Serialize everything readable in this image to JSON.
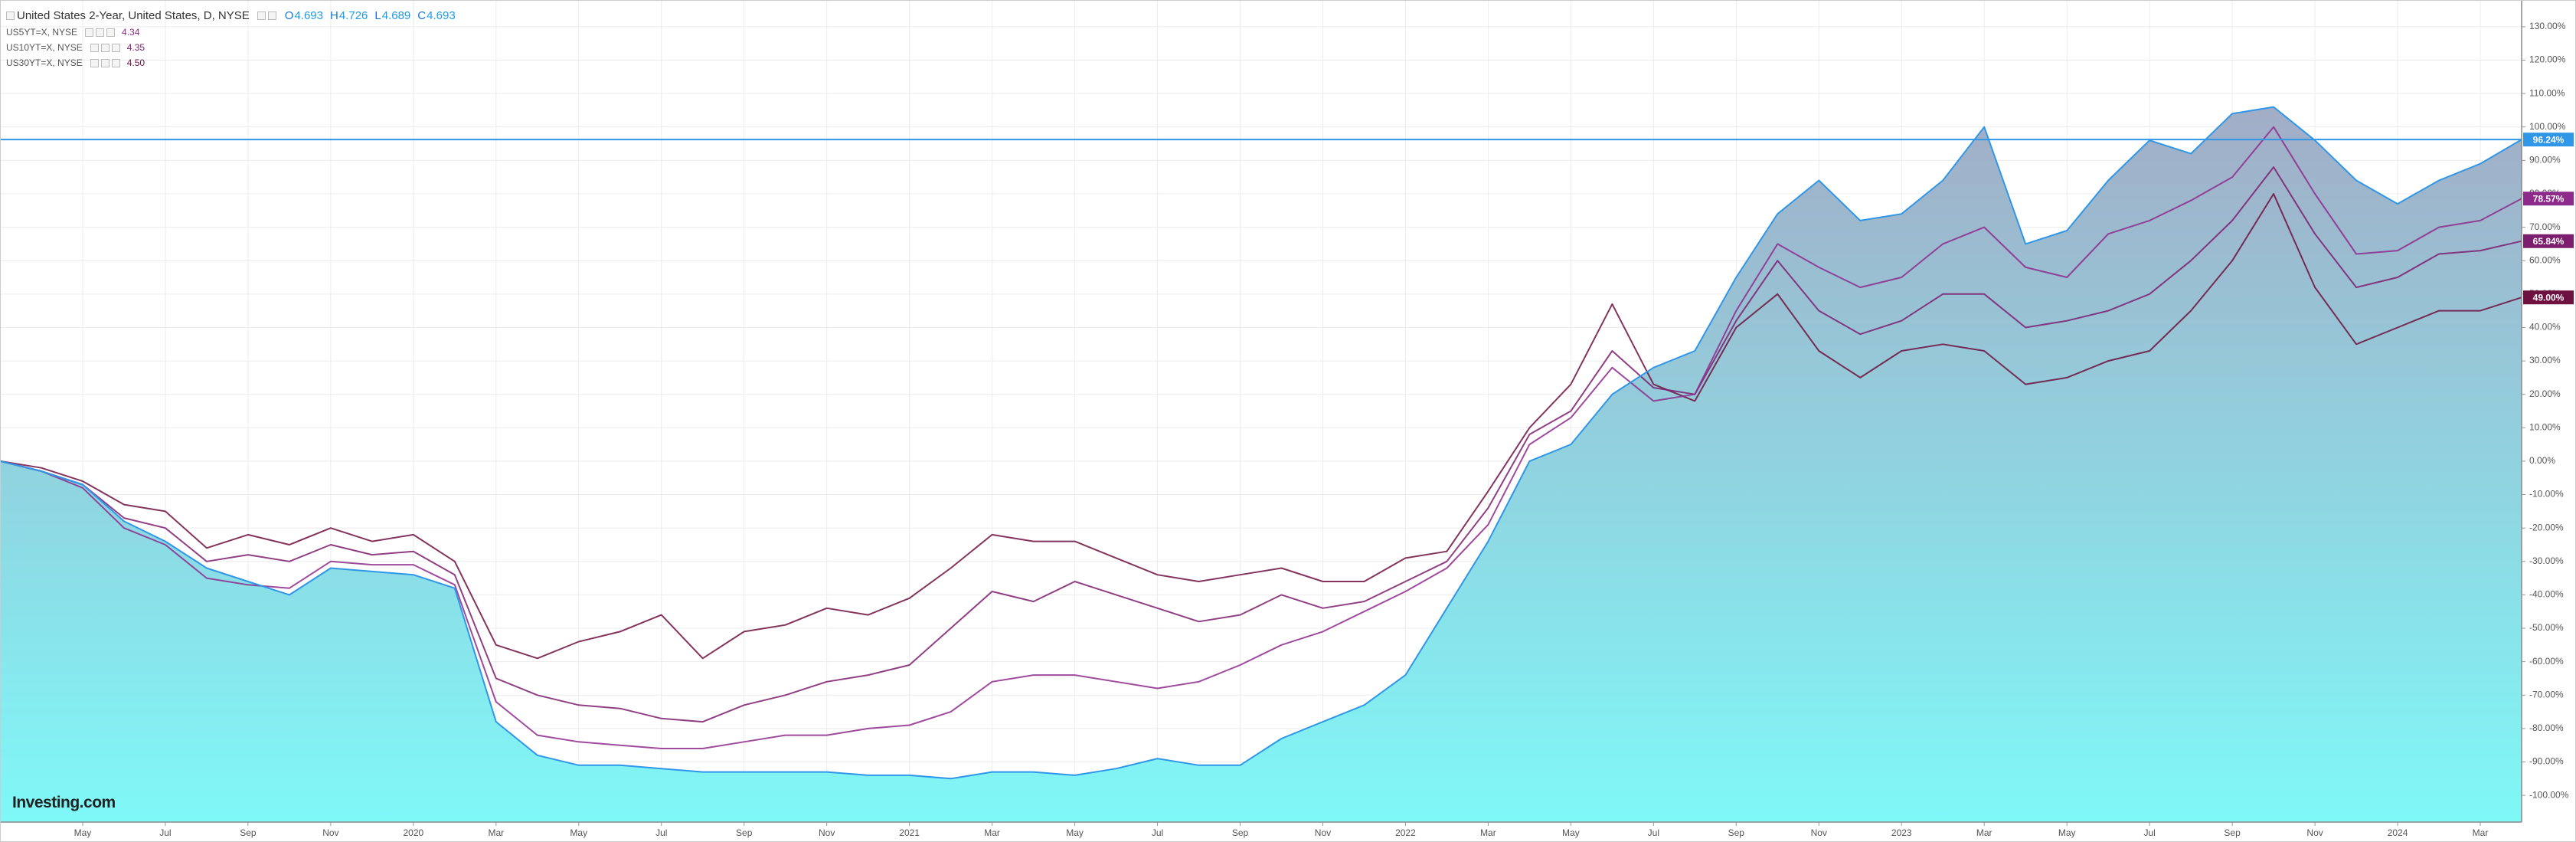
{
  "chart_data": {
    "type": "line",
    "title": "United States 2-Year, United States, D, NYSE",
    "ohlc": [
      {
        "label": "O",
        "value": 4.693
      },
      {
        "label": "H",
        "value": 4.726
      },
      {
        "label": "L",
        "value": 4.689
      },
      {
        "label": "C",
        "value": 4.693
      }
    ],
    "x": [
      "2019-03",
      "2019-04",
      "2019-05",
      "2019-06",
      "2019-07",
      "2019-08",
      "2019-09",
      "2019-10",
      "2019-11",
      "2019-12",
      "2020-01",
      "2020-02",
      "2020-03",
      "2020-04",
      "2020-05",
      "2020-06",
      "2020-07",
      "2020-08",
      "2020-09",
      "2020-10",
      "2020-11",
      "2020-12",
      "2021-01",
      "2021-02",
      "2021-03",
      "2021-04",
      "2021-05",
      "2021-06",
      "2021-07",
      "2021-08",
      "2021-09",
      "2021-10",
      "2021-11",
      "2021-12",
      "2022-01",
      "2022-02",
      "2022-03",
      "2022-04",
      "2022-05",
      "2022-06",
      "2022-07",
      "2022-08",
      "2022-09",
      "2022-10",
      "2022-11",
      "2022-12",
      "2023-01",
      "2023-02",
      "2023-03",
      "2023-04",
      "2023-05",
      "2023-06",
      "2023-07",
      "2023-08",
      "2023-09",
      "2023-10",
      "2023-11",
      "2023-12",
      "2024-01",
      "2024-02",
      "2024-03",
      "2024-04"
    ],
    "xlim": [
      "2019-03",
      "2024-04"
    ],
    "xticks": [
      {
        "value": "2019-05",
        "label": "May"
      },
      {
        "value": "2019-07",
        "label": "Jul"
      },
      {
        "value": "2019-09",
        "label": "Sep"
      },
      {
        "value": "2019-11",
        "label": "Nov"
      },
      {
        "value": "2020-01",
        "label": "2020"
      },
      {
        "value": "2020-03",
        "label": "Mar"
      },
      {
        "value": "2020-05",
        "label": "May"
      },
      {
        "value": "2020-07",
        "label": "Jul"
      },
      {
        "value": "2020-09",
        "label": "Sep"
      },
      {
        "value": "2020-11",
        "label": "Nov"
      },
      {
        "value": "2021-01",
        "label": "2021"
      },
      {
        "value": "2021-03",
        "label": "Mar"
      },
      {
        "value": "2021-05",
        "label": "May"
      },
      {
        "value": "2021-07",
        "label": "Jul"
      },
      {
        "value": "2021-09",
        "label": "Sep"
      },
      {
        "value": "2021-11",
        "label": "Nov"
      },
      {
        "value": "2022-01",
        "label": "2022"
      },
      {
        "value": "2022-03",
        "label": "Mar"
      },
      {
        "value": "2022-05",
        "label": "May"
      },
      {
        "value": "2022-07",
        "label": "Jul"
      },
      {
        "value": "2022-09",
        "label": "Sep"
      },
      {
        "value": "2022-11",
        "label": "Nov"
      },
      {
        "value": "2023-01",
        "label": "2023"
      },
      {
        "value": "2023-03",
        "label": "Mar"
      },
      {
        "value": "2023-05",
        "label": "May"
      },
      {
        "value": "2023-07",
        "label": "Jul"
      },
      {
        "value": "2023-09",
        "label": "Sep"
      },
      {
        "value": "2023-11",
        "label": "Nov"
      },
      {
        "value": "2024-01",
        "label": "2024"
      },
      {
        "value": "2024-03",
        "label": "Mar"
      }
    ],
    "ylim": [
      -108,
      138
    ],
    "yticks": [
      {
        "value": 130,
        "label": "130.00%"
      },
      {
        "value": 120,
        "label": "120.00%"
      },
      {
        "value": 110,
        "label": "110.00%"
      },
      {
        "value": 100,
        "label": "100.00%"
      },
      {
        "value": 90,
        "label": "90.00%"
      },
      {
        "value": 80,
        "label": "80.00%"
      },
      {
        "value": 70,
        "label": "70.00%"
      },
      {
        "value": 60,
        "label": "60.00%"
      },
      {
        "value": 50,
        "label": "50.00%"
      },
      {
        "value": 40,
        "label": "40.00%"
      },
      {
        "value": 30,
        "label": "30.00%"
      },
      {
        "value": 20,
        "label": "20.00%"
      },
      {
        "value": 10,
        "label": "10.00%"
      },
      {
        "value": 0,
        "label": "0.00%"
      },
      {
        "value": -10,
        "label": "-10.00%"
      },
      {
        "value": -20,
        "label": "-20.00%"
      },
      {
        "value": -30,
        "label": "-30.00%"
      },
      {
        "value": -40,
        "label": "-40.00%"
      },
      {
        "value": -50,
        "label": "-50.00%"
      },
      {
        "value": -60,
        "label": "-60.00%"
      },
      {
        "value": -70,
        "label": "-70.00%"
      },
      {
        "value": -80,
        "label": "-80.00%"
      },
      {
        "value": -90,
        "label": "-90.00%"
      },
      {
        "value": -100,
        "label": "-100.00%"
      }
    ],
    "grid": true,
    "series": [
      {
        "color": "#2f96e8",
        "fill": [
          "#a2adc6",
          "#7ff8f8"
        ],
        "price_line": true,
        "end_label": "96.24%",
        "values": [
          0,
          -3,
          -7,
          -18,
          -24,
          -32,
          -36,
          -40,
          -32,
          -33,
          -34,
          -38,
          -78,
          -88,
          -91,
          -91,
          -92,
          -93,
          -93,
          -93,
          -93,
          -94,
          -94,
          -95,
          -93,
          -93,
          -94,
          -92,
          -89,
          -91,
          -91,
          -83,
          -78,
          -73,
          -64,
          -44,
          -24,
          0,
          5,
          20,
          28,
          33,
          55,
          74,
          84,
          72,
          74,
          84,
          100,
          65,
          69,
          84,
          96,
          92,
          104,
          106,
          96,
          84,
          77,
          84,
          89,
          96.24
        ]
      },
      {
        "name": "US5YT=X, NYSE",
        "price": "4.34",
        "color": "#8e2a8c",
        "end_label": "78.57%",
        "values": [
          0,
          -3,
          -8,
          -20,
          -25,
          -35,
          -37,
          -38,
          -30,
          -31,
          -31,
          -37,
          -72,
          -82,
          -84,
          -85,
          -86,
          -86,
          -84,
          -82,
          -82,
          -80,
          -79,
          -75,
          -66,
          -64,
          -64,
          -66,
          -68,
          -66,
          -61,
          -55,
          -51,
          -45,
          -39,
          -32,
          -19,
          5,
          13,
          28,
          18,
          20,
          45,
          65,
          58,
          52,
          55,
          65,
          70,
          58,
          55,
          68,
          72,
          78,
          85,
          100,
          80,
          62,
          63,
          70,
          72,
          78.57
        ]
      },
      {
        "name": "US10YT=X, NYSE",
        "price": "4.35",
        "color": "#7c1d6e",
        "end_label": "65.84%",
        "values": [
          0,
          -3,
          -7,
          -17,
          -20,
          -30,
          -28,
          -30,
          -25,
          -28,
          -27,
          -34,
          -65,
          -70,
          -73,
          -74,
          -77,
          -78,
          -73,
          -70,
          -66,
          -64,
          -61,
          -50,
          -39,
          -42,
          -36,
          -40,
          -44,
          -48,
          -46,
          -40,
          -44,
          -42,
          -36,
          -30,
          -14,
          8,
          15,
          33,
          22,
          20,
          42,
          60,
          45,
          38,
          42,
          50,
          50,
          40,
          42,
          45,
          50,
          60,
          72,
          88,
          68,
          52,
          55,
          62,
          63,
          65.84
        ]
      },
      {
        "name": "US30YT=X, NYSE",
        "price": "4.50",
        "color": "#6e1040",
        "end_label": "49.00%",
        "values": [
          0,
          -2,
          -6,
          -13,
          -15,
          -26,
          -22,
          -25,
          -20,
          -24,
          -22,
          -30,
          -55,
          -59,
          -54,
          -51,
          -46,
          -59,
          -51,
          -49,
          -44,
          -46,
          -41,
          -32,
          -22,
          -24,
          -24,
          -29,
          -34,
          -36,
          -34,
          -32,
          -36,
          -36,
          -29,
          -27,
          -9,
          10,
          23,
          47,
          23,
          18,
          40,
          50,
          33,
          25,
          33,
          35,
          33,
          23,
          25,
          30,
          33,
          45,
          60,
          80,
          52,
          35,
          40,
          45,
          45,
          49
        ]
      }
    ],
    "watermark": "Investing.com"
  }
}
